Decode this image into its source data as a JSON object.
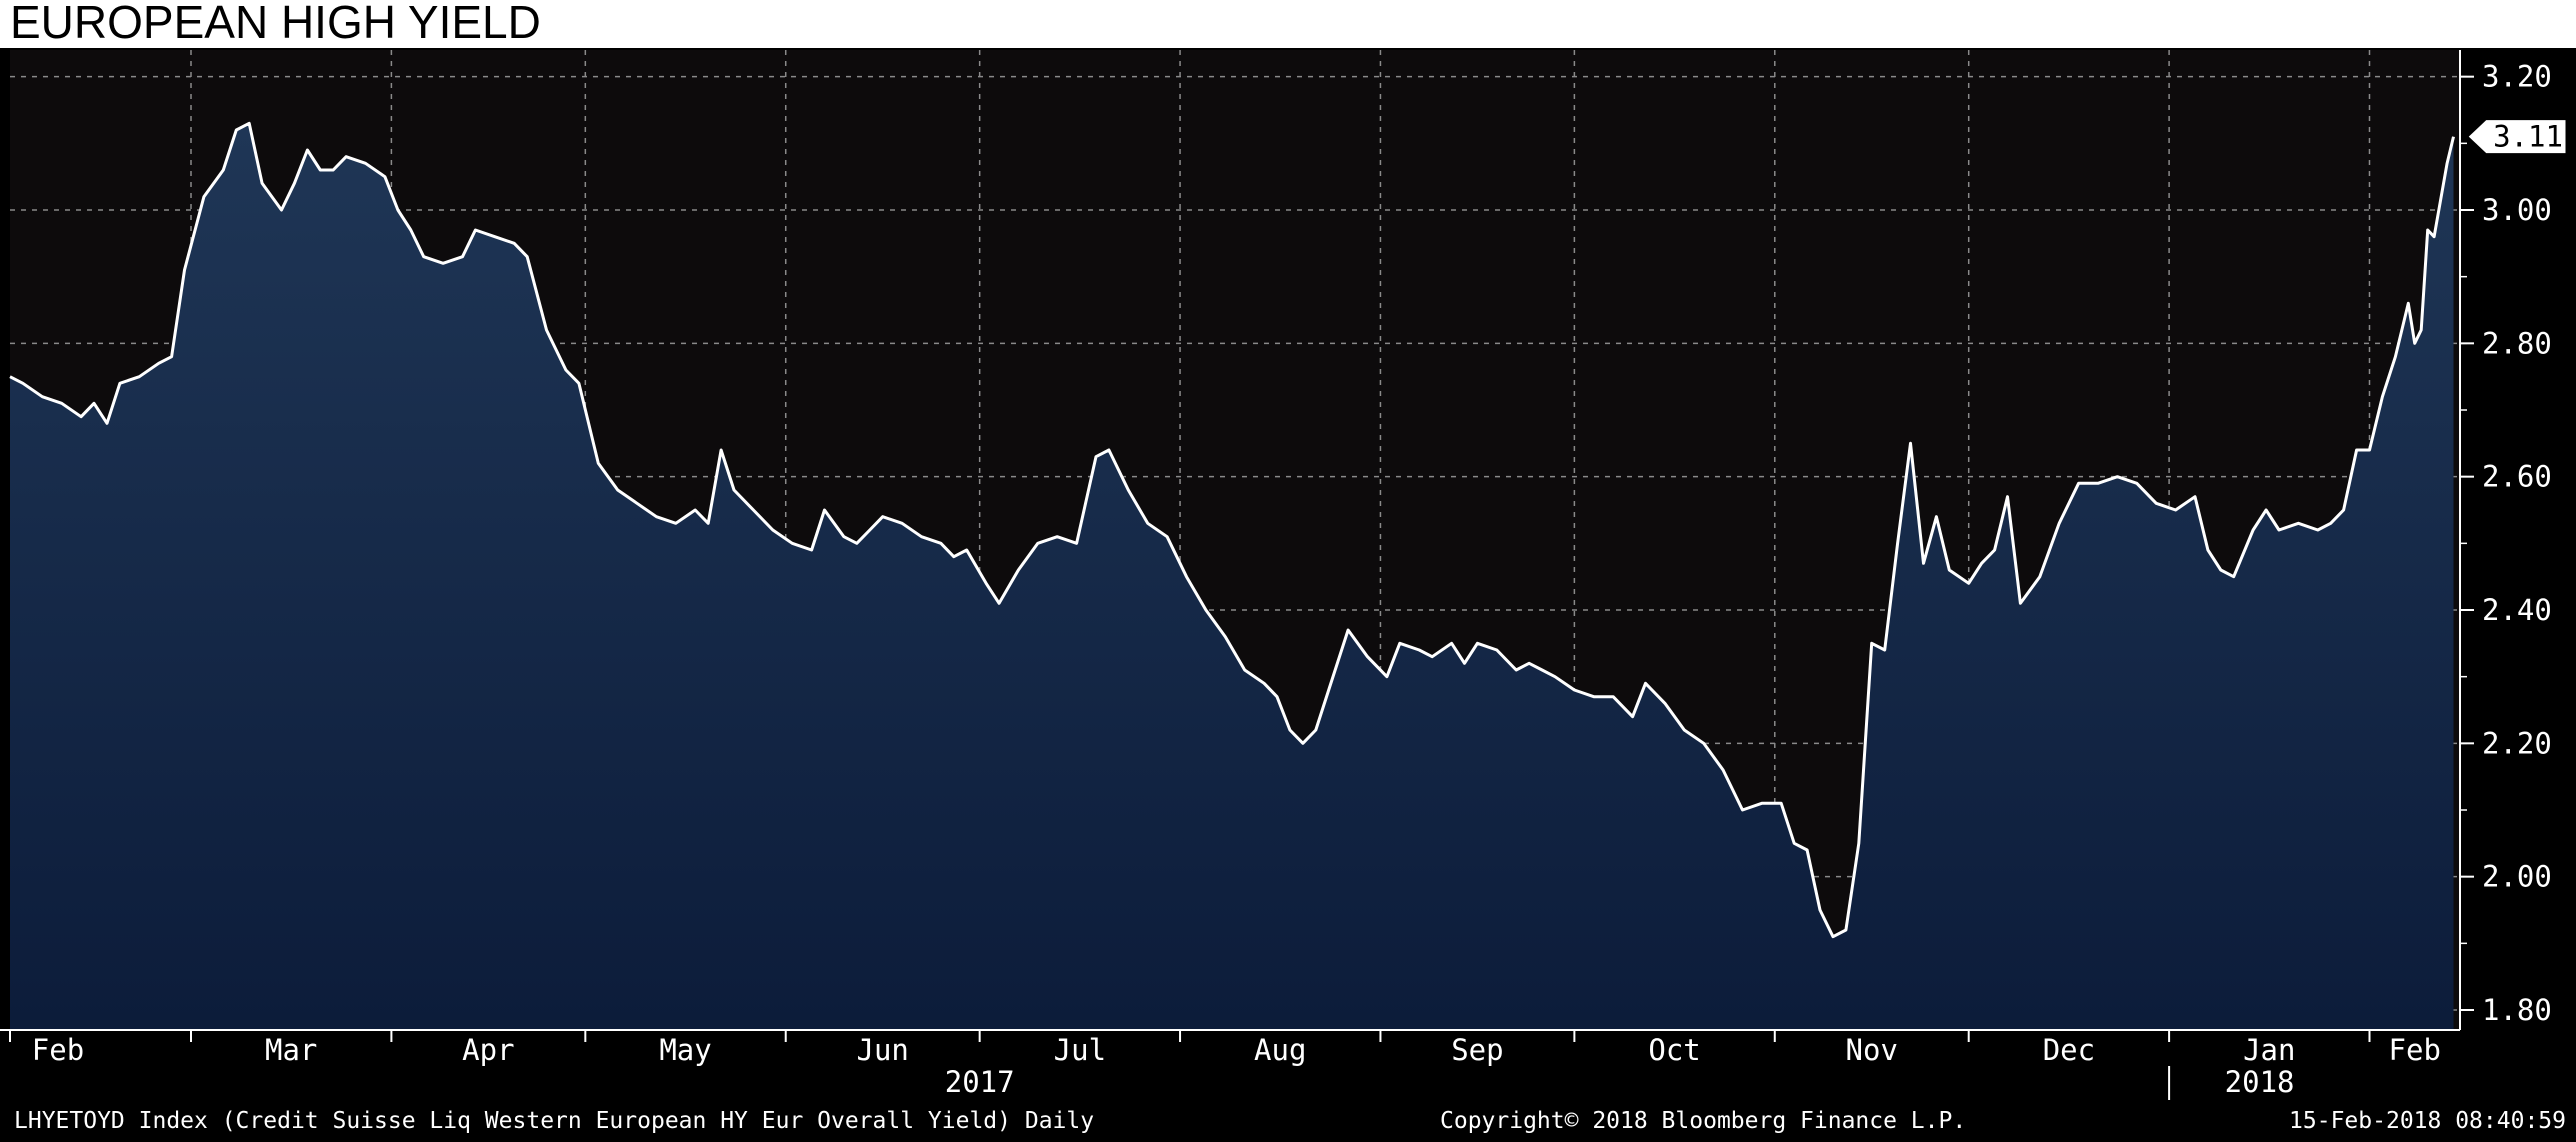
{
  "chart_data": {
    "type": "area",
    "title": "EUROPEAN HIGH YIELD",
    "ylim": [
      1.77,
      3.24
    ],
    "yticks": [
      1.8,
      2.0,
      2.2,
      2.4,
      2.6,
      2.8,
      3.0,
      3.2
    ],
    "ytick_labels": [
      "1.80",
      "2.00",
      "2.20",
      "2.40",
      "2.60",
      "2.80",
      "3.00",
      "3.20"
    ],
    "y_axis_side": "right",
    "grid": true,
    "xlim": [
      "2017-02-01",
      "2018-02-15"
    ],
    "month_labels": [
      {
        "label": "Feb",
        "date": "2017-02-01"
      },
      {
        "label": "Mar",
        "date": "2017-03-01"
      },
      {
        "label": "Apr",
        "date": "2017-04-01"
      },
      {
        "label": "May",
        "date": "2017-05-01"
      },
      {
        "label": "Jun",
        "date": "2017-06-01"
      },
      {
        "label": "Jul",
        "date": "2017-07-01"
      },
      {
        "label": "Aug",
        "date": "2017-08-01"
      },
      {
        "label": "Sep",
        "date": "2017-09-01"
      },
      {
        "label": "Oct",
        "date": "2017-10-01"
      },
      {
        "label": "Nov",
        "date": "2017-11-01"
      },
      {
        "label": "Dec",
        "date": "2017-12-01"
      },
      {
        "label": "Jan",
        "date": "2018-01-01"
      },
      {
        "label": "Feb",
        "date": "2018-02-01"
      }
    ],
    "year_labels": [
      {
        "label": "2017",
        "date": "2017-07-01"
      },
      {
        "label": "2018",
        "date": "2018-01-15"
      }
    ],
    "last_value": 3.11,
    "last_value_label": "3.11",
    "series": [
      {
        "data": [
          [
            "2017-02-01",
            2.75
          ],
          [
            "2017-02-03",
            2.74
          ],
          [
            "2017-02-06",
            2.72
          ],
          [
            "2017-02-09",
            2.71
          ],
          [
            "2017-02-12",
            2.69
          ],
          [
            "2017-02-14",
            2.71
          ],
          [
            "2017-02-16",
            2.68
          ],
          [
            "2017-02-18",
            2.74
          ],
          [
            "2017-02-21",
            2.75
          ],
          [
            "2017-02-24",
            2.77
          ],
          [
            "2017-02-26",
            2.78
          ],
          [
            "2017-02-28",
            2.91
          ],
          [
            "2017-03-03",
            3.02
          ],
          [
            "2017-03-06",
            3.06
          ],
          [
            "2017-03-08",
            3.12
          ],
          [
            "2017-03-10",
            3.13
          ],
          [
            "2017-03-12",
            3.04
          ],
          [
            "2017-03-15",
            3.0
          ],
          [
            "2017-03-17",
            3.04
          ],
          [
            "2017-03-19",
            3.09
          ],
          [
            "2017-03-21",
            3.06
          ],
          [
            "2017-03-23",
            3.06
          ],
          [
            "2017-03-25",
            3.08
          ],
          [
            "2017-03-28",
            3.07
          ],
          [
            "2017-03-31",
            3.05
          ],
          [
            "2017-04-02",
            3.0
          ],
          [
            "2017-04-04",
            2.97
          ],
          [
            "2017-04-06",
            2.93
          ],
          [
            "2017-04-09",
            2.92
          ],
          [
            "2017-04-12",
            2.93
          ],
          [
            "2017-04-14",
            2.97
          ],
          [
            "2017-04-17",
            2.96
          ],
          [
            "2017-04-20",
            2.95
          ],
          [
            "2017-04-22",
            2.93
          ],
          [
            "2017-04-25",
            2.82
          ],
          [
            "2017-04-28",
            2.76
          ],
          [
            "2017-04-30",
            2.74
          ],
          [
            "2017-05-03",
            2.62
          ],
          [
            "2017-05-06",
            2.58
          ],
          [
            "2017-05-09",
            2.56
          ],
          [
            "2017-05-12",
            2.54
          ],
          [
            "2017-05-15",
            2.53
          ],
          [
            "2017-05-18",
            2.55
          ],
          [
            "2017-05-20",
            2.53
          ],
          [
            "2017-05-22",
            2.64
          ],
          [
            "2017-05-24",
            2.58
          ],
          [
            "2017-05-27",
            2.55
          ],
          [
            "2017-05-30",
            2.52
          ],
          [
            "2017-06-02",
            2.5
          ],
          [
            "2017-06-05",
            2.49
          ],
          [
            "2017-06-07",
            2.55
          ],
          [
            "2017-06-10",
            2.51
          ],
          [
            "2017-06-12",
            2.5
          ],
          [
            "2017-06-14",
            2.52
          ],
          [
            "2017-06-16",
            2.54
          ],
          [
            "2017-06-19",
            2.53
          ],
          [
            "2017-06-22",
            2.51
          ],
          [
            "2017-06-25",
            2.5
          ],
          [
            "2017-06-27",
            2.48
          ],
          [
            "2017-06-29",
            2.49
          ],
          [
            "2017-07-02",
            2.44
          ],
          [
            "2017-07-04",
            2.41
          ],
          [
            "2017-07-07",
            2.46
          ],
          [
            "2017-07-10",
            2.5
          ],
          [
            "2017-07-13",
            2.51
          ],
          [
            "2017-07-16",
            2.5
          ],
          [
            "2017-07-19",
            2.63
          ],
          [
            "2017-07-21",
            2.64
          ],
          [
            "2017-07-24",
            2.58
          ],
          [
            "2017-07-27",
            2.53
          ],
          [
            "2017-07-30",
            2.51
          ],
          [
            "2017-08-02",
            2.45
          ],
          [
            "2017-08-05",
            2.4
          ],
          [
            "2017-08-08",
            2.36
          ],
          [
            "2017-08-11",
            2.31
          ],
          [
            "2017-08-14",
            2.29
          ],
          [
            "2017-08-16",
            2.27
          ],
          [
            "2017-08-18",
            2.22
          ],
          [
            "2017-08-20",
            2.2
          ],
          [
            "2017-08-22",
            2.22
          ],
          [
            "2017-08-24",
            2.28
          ],
          [
            "2017-08-27",
            2.37
          ],
          [
            "2017-08-30",
            2.33
          ],
          [
            "2017-09-02",
            2.3
          ],
          [
            "2017-09-04",
            2.35
          ],
          [
            "2017-09-07",
            2.34
          ],
          [
            "2017-09-09",
            2.33
          ],
          [
            "2017-09-12",
            2.35
          ],
          [
            "2017-09-14",
            2.32
          ],
          [
            "2017-09-16",
            2.35
          ],
          [
            "2017-09-19",
            2.34
          ],
          [
            "2017-09-22",
            2.31
          ],
          [
            "2017-09-24",
            2.32
          ],
          [
            "2017-09-26",
            2.31
          ],
          [
            "2017-09-28",
            2.3
          ],
          [
            "2017-10-01",
            2.28
          ],
          [
            "2017-10-04",
            2.27
          ],
          [
            "2017-10-07",
            2.27
          ],
          [
            "2017-10-10",
            2.24
          ],
          [
            "2017-10-12",
            2.29
          ],
          [
            "2017-10-15",
            2.26
          ],
          [
            "2017-10-18",
            2.22
          ],
          [
            "2017-10-21",
            2.2
          ],
          [
            "2017-10-24",
            2.16
          ],
          [
            "2017-10-27",
            2.1
          ],
          [
            "2017-10-30",
            2.11
          ],
          [
            "2017-11-02",
            2.11
          ],
          [
            "2017-11-04",
            2.05
          ],
          [
            "2017-11-06",
            2.04
          ],
          [
            "2017-11-08",
            1.95
          ],
          [
            "2017-11-10",
            1.91
          ],
          [
            "2017-11-12",
            1.92
          ],
          [
            "2017-11-14",
            2.05
          ],
          [
            "2017-11-16",
            2.35
          ],
          [
            "2017-11-18",
            2.34
          ],
          [
            "2017-11-20",
            2.5
          ],
          [
            "2017-11-22",
            2.65
          ],
          [
            "2017-11-24",
            2.47
          ],
          [
            "2017-11-26",
            2.54
          ],
          [
            "2017-11-28",
            2.46
          ],
          [
            "2017-12-01",
            2.44
          ],
          [
            "2017-12-03",
            2.47
          ],
          [
            "2017-12-05",
            2.49
          ],
          [
            "2017-12-07",
            2.57
          ],
          [
            "2017-12-09",
            2.41
          ],
          [
            "2017-12-12",
            2.45
          ],
          [
            "2017-12-15",
            2.53
          ],
          [
            "2017-12-18",
            2.59
          ],
          [
            "2017-12-21",
            2.59
          ],
          [
            "2017-12-24",
            2.6
          ],
          [
            "2017-12-27",
            2.59
          ],
          [
            "2017-12-30",
            2.56
          ],
          [
            "2018-01-02",
            2.55
          ],
          [
            "2018-01-05",
            2.57
          ],
          [
            "2018-01-07",
            2.49
          ],
          [
            "2018-01-09",
            2.46
          ],
          [
            "2018-01-11",
            2.45
          ],
          [
            "2018-01-14",
            2.52
          ],
          [
            "2018-01-16",
            2.55
          ],
          [
            "2018-01-18",
            2.52
          ],
          [
            "2018-01-21",
            2.53
          ],
          [
            "2018-01-24",
            2.52
          ],
          [
            "2018-01-26",
            2.53
          ],
          [
            "2018-01-28",
            2.55
          ],
          [
            "2018-01-30",
            2.64
          ],
          [
            "2018-02-01",
            2.64
          ],
          [
            "2018-02-03",
            2.72
          ],
          [
            "2018-02-05",
            2.78
          ],
          [
            "2018-02-07",
            2.86
          ],
          [
            "2018-02-08",
            2.8
          ],
          [
            "2018-02-09",
            2.82
          ],
          [
            "2018-02-10",
            2.97
          ],
          [
            "2018-02-11",
            2.96
          ],
          [
            "2018-02-13",
            3.07
          ],
          [
            "2018-02-14",
            3.11
          ]
        ]
      }
    ]
  },
  "footer": {
    "left": "LHYETOYD Index (Credit Suisse Liq Western European HY Eur Overall Yield)  Daily",
    "center": "Copyright© 2018 Bloomberg Finance L.P.",
    "right": "15-Feb-2018 08:40:59"
  },
  "colors": {
    "plot_background": "#0d0b0c",
    "area_top": "#1f3656",
    "area_bottom": "#0c1c3a",
    "line": "#ffffff",
    "grid": "#8a8a8a",
    "panel": "#000000"
  }
}
